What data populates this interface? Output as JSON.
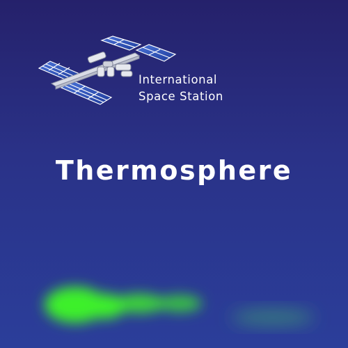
{
  "background": {
    "top_color": "#25216b",
    "bottom_color": "#2b3e9a"
  },
  "station": {
    "icon": "space-station-icon",
    "label_line1": "International",
    "label_line2": "Space Station",
    "panel_color": "#2a4fb8",
    "truss_color": "#d9dce6"
  },
  "layer": {
    "title": "Thermosphere"
  },
  "aurora": {
    "icon": "aurora-glow",
    "color": "#3ef02a",
    "faint_color": "#3c8f78"
  }
}
